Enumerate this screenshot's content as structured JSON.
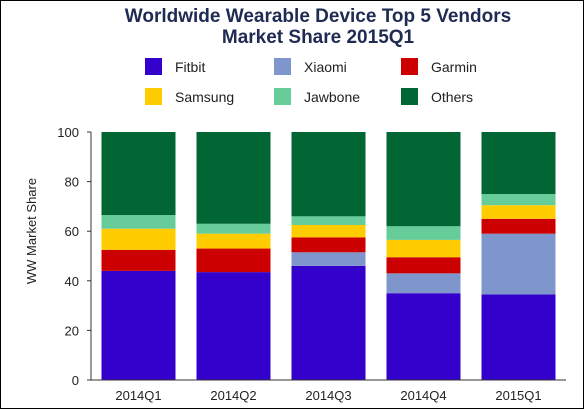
{
  "chart_data": {
    "type": "bar",
    "stacked": true,
    "title": "Worldwide Wearable Device Top 5 Vendors",
    "subtitle": "Market Share 2015Q1",
    "ylabel": "WW Market Share",
    "xlabel": "",
    "ylim": [
      0,
      100
    ],
    "yticks": [
      0,
      20,
      40,
      60,
      80,
      100
    ],
    "grid": false,
    "legend_position": "top",
    "categories": [
      "2014Q1",
      "2014Q2",
      "2014Q3",
      "2014Q4",
      "2015Q1"
    ],
    "series": [
      {
        "name": "Fitbit",
        "color": "#3300cc",
        "values": [
          44,
          43.5,
          46,
          35,
          34.5
        ]
      },
      {
        "name": "Xiaomi",
        "color": "#7f96cc",
        "values": [
          0,
          0,
          5.5,
          8,
          24.5
        ]
      },
      {
        "name": "Garmin",
        "color": "#cc0000",
        "values": [
          8.5,
          9.5,
          6,
          6.5,
          6
        ]
      },
      {
        "name": "Samsung",
        "color": "#ffcc00",
        "values": [
          8.5,
          6,
          5,
          7,
          5.5
        ]
      },
      {
        "name": "Jawbone",
        "color": "#66cc99",
        "values": [
          5.5,
          4,
          3.5,
          5.5,
          4.5
        ]
      },
      {
        "name": "Others",
        "color": "#006633",
        "values": [
          33.5,
          37,
          34,
          38,
          25
        ]
      }
    ]
  }
}
